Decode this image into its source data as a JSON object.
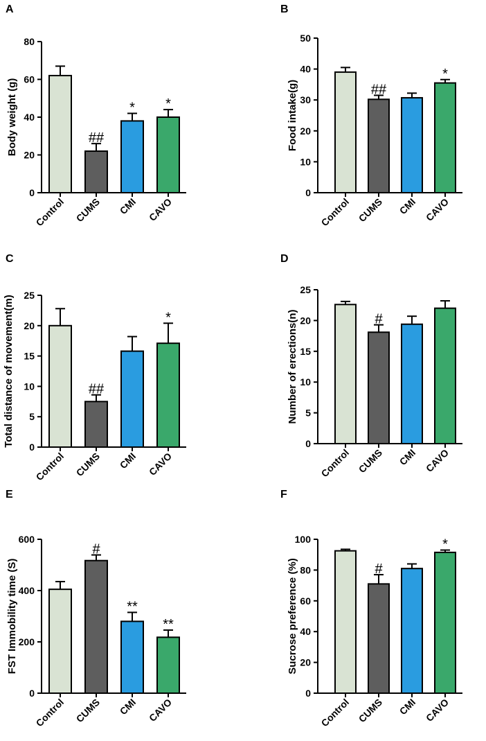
{
  "chart_data": [
    {
      "panel": "A",
      "type": "bar",
      "categories": [
        "Control",
        "CUMS",
        "CMI",
        "CAVO"
      ],
      "values": [
        62,
        22,
        38,
        40
      ],
      "errors": [
        5,
        4,
        4,
        4
      ],
      "significance": [
        "",
        "##",
        "*",
        "*"
      ],
      "colors": [
        "#d9e3d3",
        "#5e5e5e",
        "#2a9ce0",
        "#3aa86b"
      ],
      "ylabel": "Body weight (g)",
      "ylim": [
        0,
        80
      ],
      "yticks": [
        0,
        20,
        40,
        60,
        80
      ]
    },
    {
      "panel": "B",
      "type": "bar",
      "categories": [
        "Control",
        "CUMS",
        "CMI",
        "CAVO"
      ],
      "values": [
        39,
        30.2,
        30.7,
        35.5
      ],
      "errors": [
        1.5,
        1.3,
        1.5,
        1.1
      ],
      "significance": [
        "",
        "##",
        "",
        "*"
      ],
      "colors": [
        "#d9e3d3",
        "#5e5e5e",
        "#2a9ce0",
        "#3aa86b"
      ],
      "ylabel": "Food intake(g)",
      "ylim": [
        0,
        50
      ],
      "yticks": [
        0,
        10,
        20,
        30,
        40,
        50
      ]
    },
    {
      "panel": "C",
      "type": "bar",
      "categories": [
        "Control",
        "CUMS",
        "CMI",
        "CAVO"
      ],
      "values": [
        20,
        7.5,
        15.8,
        17.1
      ],
      "errors": [
        2.8,
        1.1,
        2.4,
        3.3
      ],
      "significance": [
        "",
        "##",
        "",
        "*"
      ],
      "colors": [
        "#d9e3d3",
        "#5e5e5e",
        "#2a9ce0",
        "#3aa86b"
      ],
      "ylabel": "Total distance of movement(m)",
      "ylim": [
        0,
        25
      ],
      "yticks": [
        0,
        5,
        10,
        15,
        20,
        25
      ]
    },
    {
      "panel": "D",
      "type": "bar",
      "categories": [
        "Control",
        "CUMS",
        "CMI",
        "CAVO"
      ],
      "values": [
        22.6,
        18.1,
        19.4,
        22
      ],
      "errors": [
        0.5,
        1.2,
        1.3,
        1.2
      ],
      "significance": [
        "",
        "#",
        "",
        ""
      ],
      "colors": [
        "#d9e3d3",
        "#5e5e5e",
        "#2a9ce0",
        "#3aa86b"
      ],
      "ylabel": "Number of erections(n)",
      "ylim": [
        0,
        25
      ],
      "yticks": [
        0,
        5,
        10,
        15,
        20,
        25
      ]
    },
    {
      "panel": "E",
      "type": "bar",
      "categories": [
        "Control",
        "CUMS",
        "CMI",
        "CAVO"
      ],
      "values": [
        405,
        517,
        280,
        218
      ],
      "errors": [
        30,
        22,
        35,
        28
      ],
      "significance": [
        "",
        "#",
        "**",
        "**"
      ],
      "colors": [
        "#d9e3d3",
        "#5e5e5e",
        "#2a9ce0",
        "#3aa86b"
      ],
      "ylabel": "FST Immobility time (S)",
      "ylim": [
        0,
        600
      ],
      "yticks": [
        0,
        200,
        400,
        600
      ]
    },
    {
      "panel": "F",
      "type": "bar",
      "categories": [
        "Control",
        "CUMS",
        "CMI",
        "CAVO"
      ],
      "values": [
        92.5,
        71,
        81,
        91.5
      ],
      "errors": [
        1,
        6,
        3,
        1.5
      ],
      "significance": [
        "",
        "#",
        "",
        "*"
      ],
      "colors": [
        "#d9e3d3",
        "#5e5e5e",
        "#2a9ce0",
        "#3aa86b"
      ],
      "ylabel": "Sucrose preference (%)",
      "ylim": [
        0,
        100
      ],
      "yticks": [
        0,
        20,
        40,
        60,
        80,
        100
      ]
    }
  ]
}
